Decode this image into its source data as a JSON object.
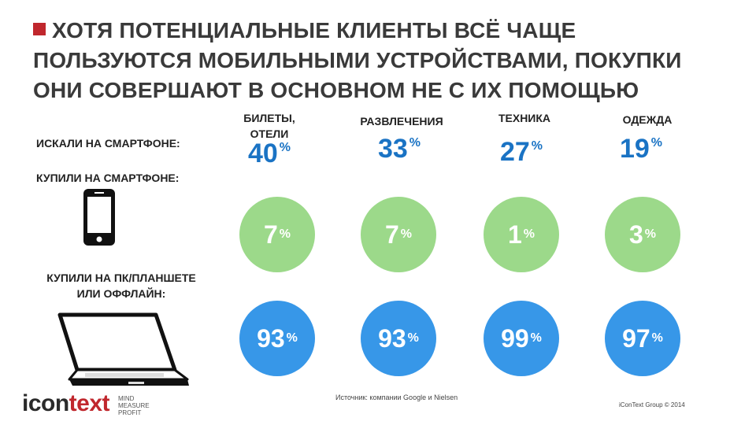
{
  "title": "ХОТЯ ПОТЕНЦИАЛЬНЫЕ КЛИЕНТЫ ВСЁ ЧАЩЕ ПОЛЬЗУЮТСЯ МОБИЛЬНЫМИ УСТРОЙСТВАМИ, ПОКУПКИ ОНИ СОВЕРШАЮТ В ОСНОВНОМ НЕ С ИХ ПОМОЩЬЮ",
  "rows": {
    "searched": "ИСКАЛИ НА СМАРТФОНЕ:",
    "bought_phone": "КУПИЛИ НА СМАРТФОНЕ:",
    "bought_pc_line1": "КУПИЛИ НА ПК/ПЛАНШЕТЕ",
    "bought_pc_line2": "ИЛИ ОФФЛАЙН:"
  },
  "categories": [
    {
      "label_line1": "БИЛЕТЫ,",
      "label_line2": "ОТЕЛИ",
      "searched": "40",
      "bought_phone": "7",
      "bought_pc": "93"
    },
    {
      "label_line1": "РАЗВЛЕЧЕНИЯ",
      "label_line2": "",
      "searched": "33",
      "bought_phone": "7",
      "bought_pc": "93"
    },
    {
      "label_line1": "ТЕХНИКА",
      "label_line2": "",
      "searched": "27",
      "bought_phone": "1",
      "bought_pc": "99"
    },
    {
      "label_line1": "ОДЕЖДА",
      "label_line2": "",
      "searched": "19",
      "bought_phone": "3",
      "bought_pc": "97"
    }
  ],
  "percent_sign": "%",
  "source": "Источник: компании Google и Nielsen",
  "copyright": "iConText Group © 2014",
  "logo": {
    "word_start": "icon",
    "word_end": "text",
    "tag1": "MIND",
    "tag2": "MEASURE",
    "tag3": "PROFIT"
  },
  "colors": {
    "accent": "#c0272d",
    "searched_text": "#1a73c4",
    "phone_circle": "#9cd98a",
    "pc_circle": "#3797e8"
  },
  "icons": {
    "phone": "smartphone-icon",
    "laptop": "laptop-icon"
  }
}
